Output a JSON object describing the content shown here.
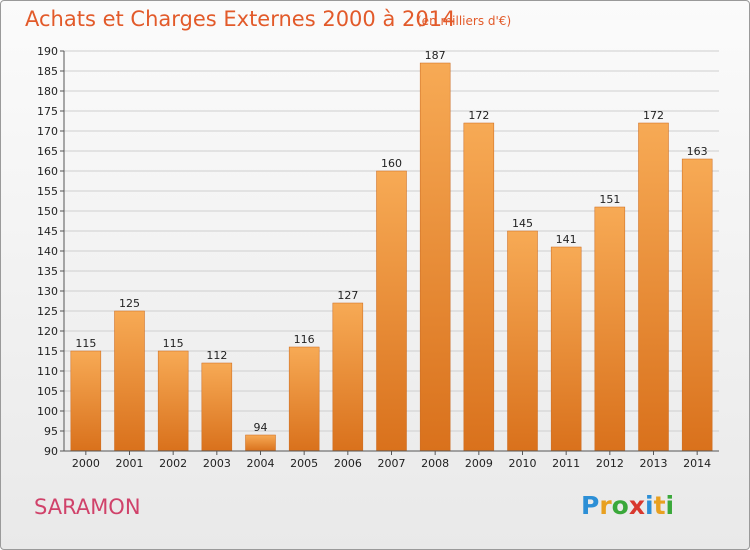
{
  "header": {
    "title": "Achats et Charges Externes 2000 à 2014",
    "subtitle": "(en milliers d'€)"
  },
  "footer": {
    "commune": "SARAMON",
    "logo_letters": [
      "P",
      "r",
      "o",
      "x",
      "i",
      "t",
      "i"
    ],
    "logo_colors": [
      "#2c8fd6",
      "#e8a020",
      "#3aa83a",
      "#d8382e",
      "#2c8fd6",
      "#e8a020",
      "#3aa83a"
    ]
  },
  "colors": {
    "bar_light": "#f7aa55",
    "bar_dark": "#d9711c",
    "grid": "#cfcfcf",
    "axis": "#555555",
    "title": "#e25a2a"
  },
  "chart_data": {
    "type": "bar",
    "categories": [
      "2000",
      "2001",
      "2002",
      "2003",
      "2004",
      "2005",
      "2006",
      "2007",
      "2008",
      "2009",
      "2010",
      "2011",
      "2012",
      "2013",
      "2014"
    ],
    "values": [
      115,
      125,
      115,
      112,
      94,
      116,
      127,
      160,
      187,
      172,
      145,
      141,
      151,
      172,
      163
    ],
    "ylim": [
      90,
      190
    ],
    "yticks": [
      90,
      95,
      100,
      105,
      110,
      115,
      120,
      125,
      130,
      135,
      140,
      145,
      150,
      155,
      160,
      165,
      170,
      175,
      180,
      185,
      190
    ],
    "grid": true,
    "title": "Achats et Charges Externes 2000 à 2014",
    "xlabel": "",
    "ylabel": ""
  }
}
